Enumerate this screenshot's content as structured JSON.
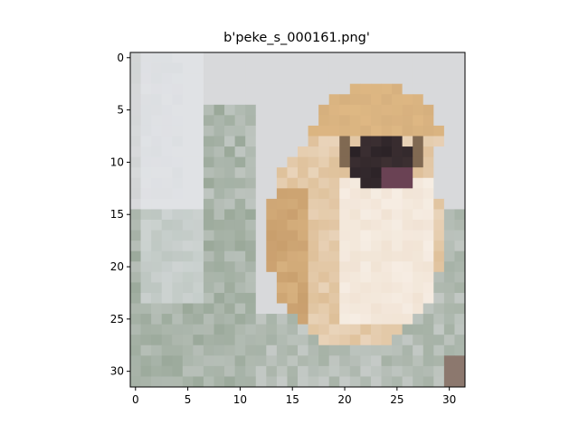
{
  "figure": {
    "title": "b'peke_s_000161.png'"
  },
  "image": {
    "subject": "pixelated 32x32 photo of a Pekingese dog (tan/white fur, dark face) against a grey-white and greenish background",
    "grid_size": [
      32,
      32
    ],
    "colors": {
      "background_grey": "#d8d9db",
      "background_green": "#8fa08e",
      "fur_tan": "#d6b07e",
      "fur_light": "#f1e3d4",
      "face_dark": "#2a2226",
      "mouth": "#6a4254"
    }
  },
  "axes": {
    "x_ticks": [
      "0",
      "5",
      "10",
      "15",
      "20",
      "25",
      "30"
    ],
    "y_ticks": [
      "0",
      "5",
      "10",
      "15",
      "20",
      "25",
      "30"
    ],
    "xlim": [
      -0.5,
      31.5
    ],
    "ylim": [
      31.5,
      -0.5
    ]
  }
}
